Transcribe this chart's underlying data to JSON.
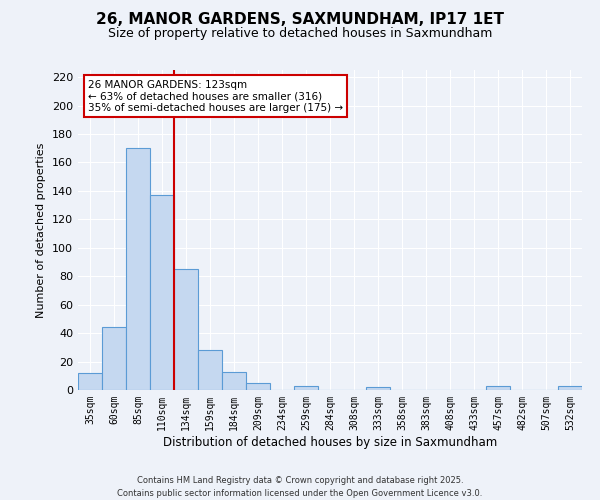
{
  "title": "26, MANOR GARDENS, SAXMUNDHAM, IP17 1ET",
  "subtitle": "Size of property relative to detached houses in Saxmundham",
  "xlabel": "Distribution of detached houses by size in Saxmundham",
  "ylabel": "Number of detached properties",
  "bar_labels": [
    "35sqm",
    "60sqm",
    "85sqm",
    "110sqm",
    "134sqm",
    "159sqm",
    "184sqm",
    "209sqm",
    "234sqm",
    "259sqm",
    "284sqm",
    "308sqm",
    "333sqm",
    "358sqm",
    "383sqm",
    "408sqm",
    "433sqm",
    "457sqm",
    "482sqm",
    "507sqm",
    "532sqm"
  ],
  "bar_values": [
    12,
    44,
    170,
    137,
    85,
    28,
    13,
    5,
    0,
    3,
    0,
    0,
    2,
    0,
    0,
    0,
    0,
    3,
    0,
    0,
    3
  ],
  "bar_color": "#c5d8f0",
  "bar_edge_color": "#5b9bd5",
  "vline_x": 3.5,
  "vline_color": "#cc0000",
  "ylim": [
    0,
    225
  ],
  "yticks": [
    0,
    20,
    40,
    60,
    80,
    100,
    120,
    140,
    160,
    180,
    200,
    220
  ],
  "annotation_title": "26 MANOR GARDENS: 123sqm",
  "annotation_line1": "← 63% of detached houses are smaller (316)",
  "annotation_line2": "35% of semi-detached houses are larger (175) →",
  "annotation_box_color": "#ffffff",
  "annotation_border_color": "#cc0000",
  "background_color": "#eef2f9",
  "grid_color": "#ffffff",
  "footer_line1": "Contains HM Land Registry data © Crown copyright and database right 2025.",
  "footer_line2": "Contains public sector information licensed under the Open Government Licence v3.0."
}
